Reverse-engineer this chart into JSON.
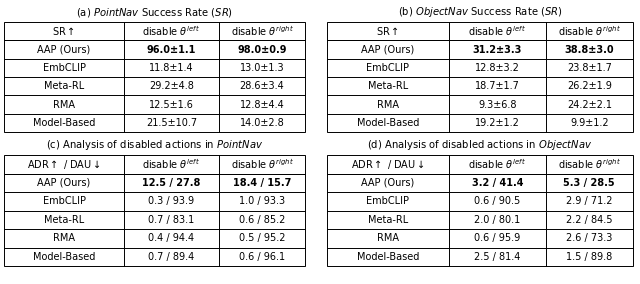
{
  "table_a_title": "(a) $\\it{PointNav}$ Success Rate ($\\it{SR}$)",
  "table_b_title": "(b) $\\it{ObjectNav}$ Success Rate ($\\it{SR}$)",
  "table_c_title": "(c) Analysis of disabled actions in $\\it{PointNav}$",
  "table_d_title": "(d) Analysis of disabled actions in $\\it{ObjectNav}$",
  "table_ab_header": [
    "SR↑",
    "disable θ^left",
    "disable θ^right"
  ],
  "table_cd_header": [
    "ADR↑ / DAU↓",
    "disable θ^left",
    "disable θ^right"
  ],
  "table_a_rows": [
    [
      "AAP (Ours)",
      "96.0±1.1",
      "98.0±0.9"
    ],
    [
      "EmbCLIP",
      "11.8±1.4",
      "13.0±1.3"
    ],
    [
      "Meta-RL",
      "29.2±4.8",
      "28.6±3.4"
    ],
    [
      "RMA",
      "12.5±1.6",
      "12.8±4.4"
    ],
    [
      "Model-Based",
      "21.5±10.7",
      "14.0±2.8"
    ]
  ],
  "table_b_rows": [
    [
      "AAP (Ours)",
      "31.2±3.3",
      "38.8±3.0"
    ],
    [
      "EmbCLIP",
      "12.8±3.2",
      "23.8±1.7"
    ],
    [
      "Meta-RL",
      "18.7±1.7",
      "26.2±1.9"
    ],
    [
      "RMA",
      "9.3±6.8",
      "24.2±2.1"
    ],
    [
      "Model-Based",
      "19.2±1.2",
      "9.9±1.2"
    ]
  ],
  "table_c_rows": [
    [
      "AAP (Ours)",
      "12.5 / 27.8",
      "18.4 / 15.7"
    ],
    [
      "EmbCLIP",
      "0.3 / 93.9",
      "1.0 / 93.3"
    ],
    [
      "Meta-RL",
      "0.7 / 83.1",
      "0.6 / 85.2"
    ],
    [
      "RMA",
      "0.4 / 94.4",
      "0.5 / 95.2"
    ],
    [
      "Model-Based",
      "0.7 / 89.4",
      "0.6 / 96.1"
    ]
  ],
  "table_d_rows": [
    [
      "AAP (Ours)",
      "3.2 / 41.4",
      "5.3 / 28.5"
    ],
    [
      "EmbCLIP",
      "0.6 / 90.5",
      "2.9 / 71.2"
    ],
    [
      "Meta-RL",
      "2.0 / 80.1",
      "2.2 / 84.5"
    ],
    [
      "RMA",
      "0.6 / 95.9",
      "2.6 / 73.3"
    ],
    [
      "Model-Based",
      "2.5 / 81.4",
      "1.5 / 89.8"
    ]
  ],
  "bold_rows": [
    0
  ],
  "font_size": 7.0,
  "title_font_size": 7.2,
  "lw": 0.7
}
